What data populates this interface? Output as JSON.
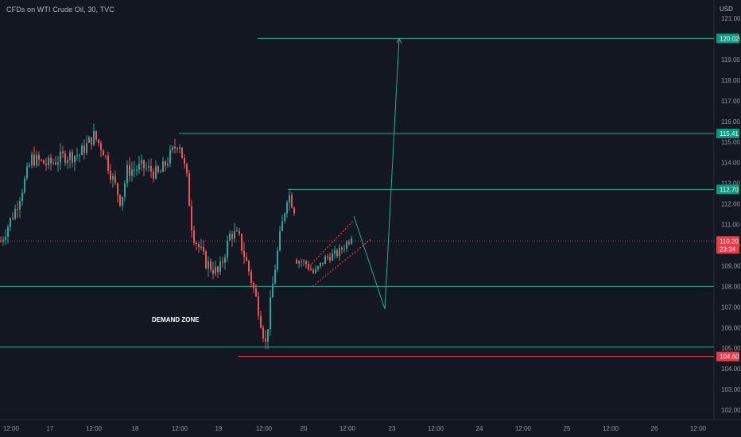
{
  "header": {
    "title": "CFDs on WTI Crude Oil, 30, TVC",
    "currency": "USD"
  },
  "colors": {
    "background": "#131722",
    "bull": "#26a69a",
    "bear": "#ef5350",
    "teal_line": "#22ab94",
    "red_line": "#f23645",
    "current_price_line": "#f23645"
  },
  "annotations": {
    "demand_zone_label": "DEMAND ZONE"
  },
  "price_axis": {
    "ticks": [
      "121.00",
      "120.00",
      "119.00",
      "118.00",
      "117.00",
      "116.00",
      "115.00",
      "114.00",
      "113.00",
      "112.00",
      "111.00",
      "110.00",
      "109.00",
      "108.00",
      "107.00",
      "106.00",
      "105.00",
      "104.00",
      "103.00",
      "102.00"
    ],
    "tick_values": [
      121,
      120,
      119,
      118,
      117,
      116,
      115,
      114,
      113,
      112,
      111,
      110,
      109,
      108,
      107,
      106,
      105,
      104,
      103,
      102
    ],
    "badges": [
      {
        "label": "120.02",
        "value": 120.02,
        "style": "teal"
      },
      {
        "label": "115.41",
        "value": 115.41,
        "style": "teal"
      },
      {
        "label": "112.70",
        "value": 112.7,
        "style": "teal"
      },
      {
        "label": "110.20",
        "value": 110.2,
        "style": "red",
        "countdown": "23:34"
      },
      {
        "label": "104.60",
        "value": 104.6,
        "style": "red"
      }
    ]
  },
  "time_axis": {
    "labels": [
      "12:00",
      "17",
      "12:00",
      "18",
      "12:00",
      "19",
      "12:00",
      "20",
      "12:00",
      "23",
      "12:00",
      "24",
      "12:00",
      "25",
      "12:00",
      "26",
      "12:00"
    ]
  },
  "chart_data": {
    "type": "candlestick",
    "title": "CFDs on WTI Crude Oil, 30, TVC",
    "ylim": [
      101.6,
      121.2
    ],
    "y_unit": "USD",
    "current_price": 110.2,
    "horizontal_levels": [
      120.02,
      115.41,
      112.7,
      108.0,
      105.05,
      104.6
    ],
    "price_path_keypoints": [
      [
        0,
        110.1
      ],
      [
        20,
        111.8
      ],
      [
        40,
        114.2
      ],
      [
        60,
        113.9
      ],
      [
        80,
        114.3
      ],
      [
        100,
        114.4
      ],
      [
        118,
        115.3
      ],
      [
        130,
        114.6
      ],
      [
        140,
        113.4
      ],
      [
        152,
        112.1
      ],
      [
        160,
        113.6
      ],
      [
        180,
        113.8
      ],
      [
        200,
        113.4
      ],
      [
        215,
        114.4
      ],
      [
        225,
        115.1
      ],
      [
        235,
        113.2
      ],
      [
        242,
        110.6
      ],
      [
        258,
        109.2
      ],
      [
        275,
        108.6
      ],
      [
        290,
        110.6
      ],
      [
        300,
        110.4
      ],
      [
        312,
        108.9
      ],
      [
        324,
        107.1
      ],
      [
        334,
        105.2
      ],
      [
        345,
        108.7
      ],
      [
        353,
        110.6
      ],
      [
        362,
        112.6
      ],
      [
        372,
        111.6
      ]
    ],
    "later_path_keypoints": [
      [
        372,
        109.3
      ],
      [
        385,
        109.1
      ],
      [
        395,
        108.6
      ],
      [
        410,
        109.4
      ],
      [
        425,
        109.6
      ],
      [
        440,
        110.3
      ],
      [
        444,
        110.7
      ]
    ],
    "projection_path": [
      [
        445,
        111.4
      ],
      [
        484,
        106.9
      ],
      [
        502,
        120.02
      ]
    ]
  }
}
